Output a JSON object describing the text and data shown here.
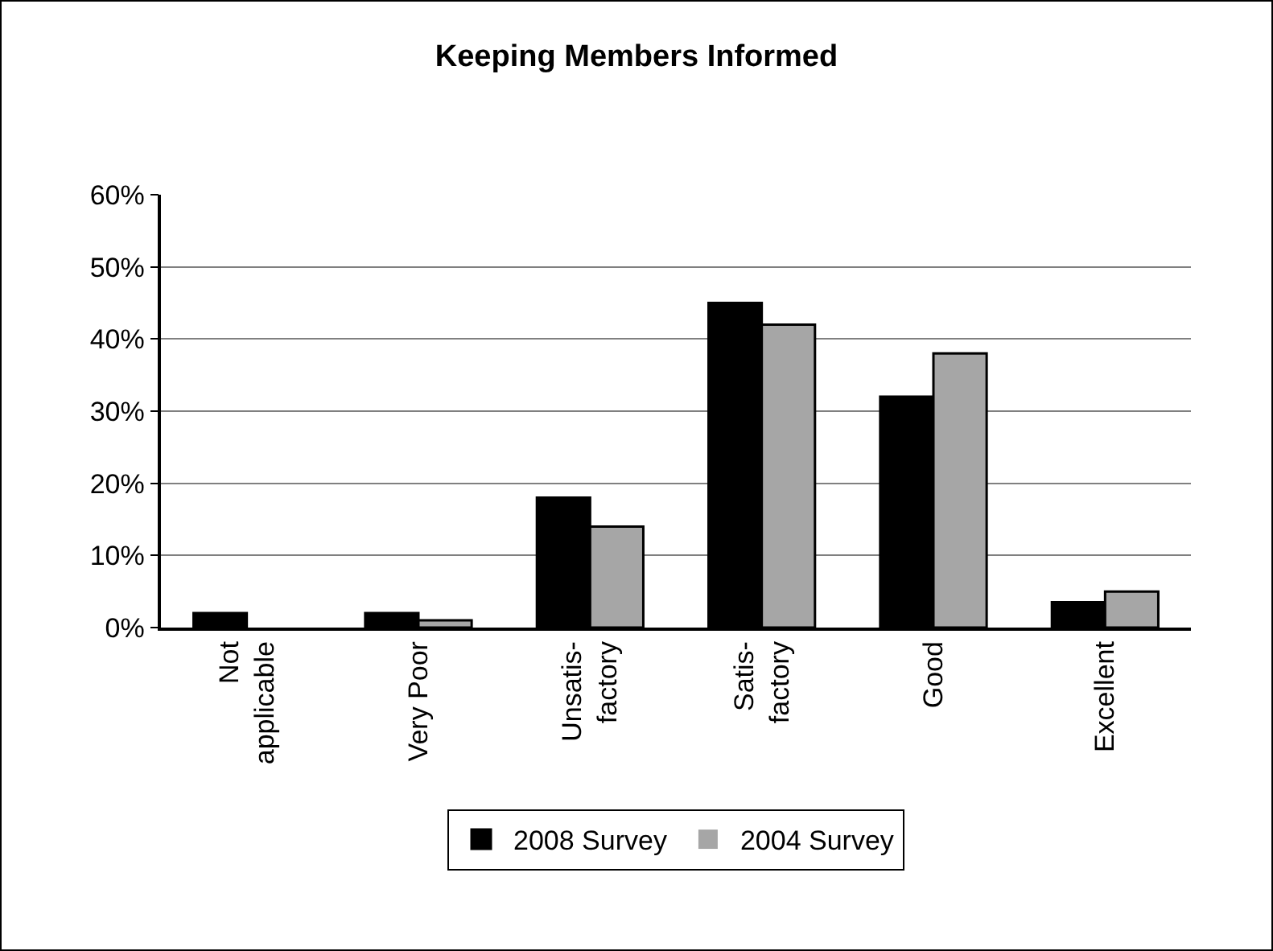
{
  "chart_data": {
    "type": "bar",
    "title": "Keeping Members Informed",
    "categories": [
      "Not\napplicable",
      "Very Poor",
      "Unsatis-\nfactory",
      "Satis-\nfactory",
      "Good",
      "Excellent"
    ],
    "series": [
      {
        "name": "2008 Survey",
        "color": "#000000",
        "values": [
          2,
          2,
          18,
          45,
          32,
          3.5
        ]
      },
      {
        "name": "2004 Survey",
        "color": "#a6a6a6",
        "values": [
          0,
          1,
          14,
          42,
          38,
          5
        ]
      }
    ],
    "ylim": [
      0,
      60
    ],
    "yticks": [
      {
        "value": 0,
        "label": "0%"
      },
      {
        "value": 10,
        "label": "10%"
      },
      {
        "value": 20,
        "label": "20%"
      },
      {
        "value": 30,
        "label": "30%"
      },
      {
        "value": 40,
        "label": "40%"
      },
      {
        "value": 50,
        "label": "50%"
      },
      {
        "value": 60,
        "label": "60%"
      }
    ],
    "grid": "y",
    "legend": "bottom"
  }
}
